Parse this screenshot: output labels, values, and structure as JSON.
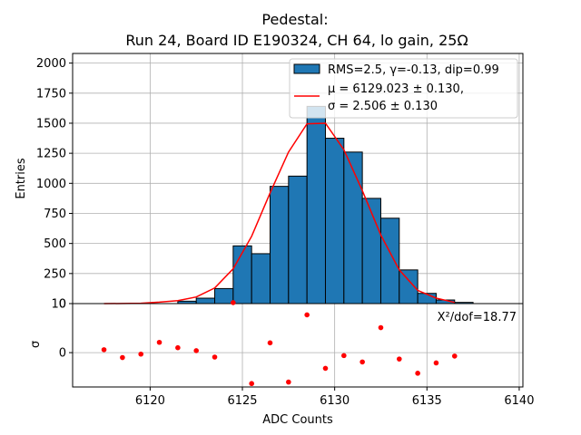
{
  "chart_data": [
    {
      "type": "bar",
      "panel": "histogram",
      "title_line1": "Pedestal:",
      "title_line2": "Run 24, Board ID E190324, CH 64, lo gain, 25Ω",
      "xlabel": "ADC Counts",
      "ylabel": "Entries",
      "xlim": [
        6115.8,
        6140.2
      ],
      "ylim": [
        0,
        2080
      ],
      "grid": true,
      "xticks": [
        6120,
        6125,
        6130,
        6135,
        6140
      ],
      "yticks": [
        0,
        250,
        500,
        750,
        1000,
        1250,
        1500,
        1750,
        2000
      ],
      "bar_color": "#1f77b4",
      "fit_color": "#ff0000",
      "bins": [
        {
          "left": 6121.5,
          "right": 6122.5,
          "value": 20
        },
        {
          "left": 6122.5,
          "right": 6123.5,
          "value": 45
        },
        {
          "left": 6123.5,
          "right": 6124.5,
          "value": 125
        },
        {
          "left": 6124.5,
          "right": 6125.5,
          "value": 480
        },
        {
          "left": 6125.5,
          "right": 6126.5,
          "value": 415
        },
        {
          "left": 6126.5,
          "right": 6127.5,
          "value": 975
        },
        {
          "left": 6127.5,
          "right": 6128.5,
          "value": 1060
        },
        {
          "left": 6128.5,
          "right": 6129.5,
          "value": 1640
        },
        {
          "left": 6129.5,
          "right": 6130.5,
          "value": 1375
        },
        {
          "left": 6130.5,
          "right": 6131.5,
          "value": 1260
        },
        {
          "left": 6131.5,
          "right": 6132.5,
          "value": 875
        },
        {
          "left": 6132.5,
          "right": 6133.5,
          "value": 710
        },
        {
          "left": 6133.5,
          "right": 6134.5,
          "value": 280
        },
        {
          "left": 6134.5,
          "right": 6135.5,
          "value": 85
        },
        {
          "left": 6135.5,
          "right": 6136.5,
          "value": 30
        },
        {
          "left": 6136.5,
          "right": 6137.5,
          "value": 10
        }
      ],
      "fit_curve": {
        "x": [
          6117.5,
          6118.5,
          6119.5,
          6120.5,
          6121.5,
          6122.5,
          6123.5,
          6124.5,
          6125.5,
          6126.5,
          6127.5,
          6128.5,
          6129.5,
          6130.5,
          6131.5,
          6132.5,
          6133.5,
          6134.5,
          6135.5,
          6136.5
        ],
        "y": [
          0,
          1,
          3,
          12,
          25,
          55,
          130,
          290,
          560,
          920,
          1260,
          1495,
          1500,
          1280,
          940,
          570,
          280,
          110,
          45,
          10
        ]
      },
      "legend": {
        "location": "upper right",
        "entries": [
          {
            "kind": "patch",
            "label": "RMS=2.5, γ=-0.13, dip=0.99"
          },
          {
            "kind": "line",
            "label_line1": "μ = 6129.023 ± 0.130,",
            "label_line2": "σ = 2.506 ± 0.130"
          }
        ]
      }
    },
    {
      "type": "scatter",
      "panel": "residuals",
      "xlabel": "ADC Counts",
      "ylabel": "σ",
      "xlim": [
        6115.8,
        6140.2
      ],
      "ylim": [
        -7,
        10
      ],
      "yticks": [
        0,
        10
      ],
      "grid": true,
      "marker_color": "#ff0000",
      "annotation": "X²/dof=18.77",
      "points": {
        "x": [
          6117.5,
          6118.5,
          6119.5,
          6120.5,
          6121.5,
          6122.5,
          6123.5,
          6124.5,
          6125.5,
          6126.5,
          6127.5,
          6128.5,
          6129.5,
          6130.5,
          6131.5,
          6132.5,
          6133.5,
          6134.5,
          6135.5,
          6136.5
        ],
        "y": [
          0.6,
          -1.0,
          -0.3,
          2.1,
          1.0,
          0.4,
          -0.9,
          10.2,
          -6.3,
          2.0,
          -6.0,
          7.7,
          -3.2,
          -0.6,
          -1.9,
          5.1,
          -1.3,
          -4.2,
          -2.1,
          -0.7
        ]
      }
    }
  ]
}
